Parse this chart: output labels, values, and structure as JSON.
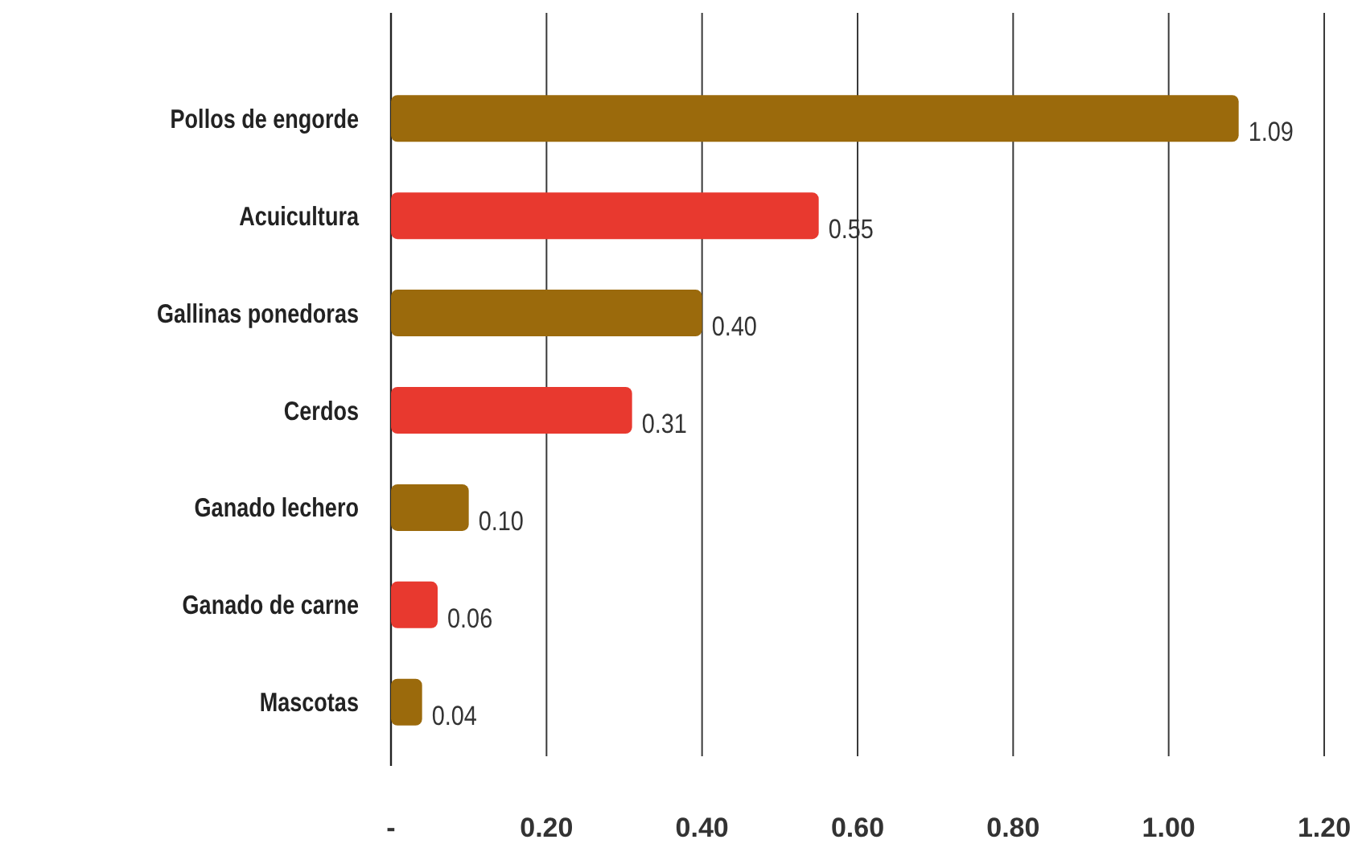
{
  "chart_data": {
    "type": "bar",
    "orientation": "horizontal",
    "categories": [
      "Pollos de engorde",
      "Acuicultura",
      "Gallinas ponedoras",
      "Cerdos",
      "Ganado lechero",
      "Ganado de carne",
      "Mascotas"
    ],
    "values": [
      1.09,
      0.55,
      0.4,
      0.31,
      0.1,
      0.06,
      0.04
    ],
    "colors": [
      "#9b6a0c",
      "#e8392f",
      "#9b6a0c",
      "#e8392f",
      "#9b6a0c",
      "#e8392f",
      "#9b6a0c"
    ],
    "value_labels": [
      "1.09",
      "0.55",
      "0.40",
      "0.31",
      "0.10",
      "0.06",
      "0.04"
    ],
    "xlim": [
      0,
      1.2
    ],
    "xticks": [
      {
        "value": 0,
        "label": "-"
      },
      {
        "value": 0.2,
        "label": "0.20"
      },
      {
        "value": 0.4,
        "label": "0.40"
      },
      {
        "value": 0.6,
        "label": "0.60"
      },
      {
        "value": 0.8,
        "label": "0.80"
      },
      {
        "value": 1.0,
        "label": "1.00"
      },
      {
        "value": 1.2,
        "label": "1.20"
      }
    ],
    "grid": "x"
  }
}
